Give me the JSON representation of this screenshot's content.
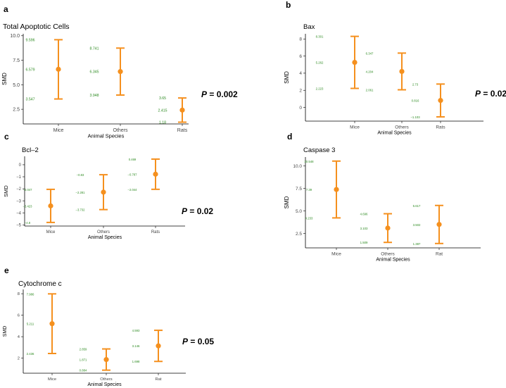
{
  "colors": {
    "point": "#F5901E",
    "label": "#2E8B22",
    "axis": "#000000",
    "tick": "#444444"
  },
  "panels": [
    {
      "letter": "a",
      "title": "Total Apoptotic Cells",
      "pvalue_prefix": "P",
      "pvalue_rest": " = 0.002"
    },
    {
      "letter": "b",
      "title": "Bax",
      "pvalue_prefix": "P",
      "pvalue_rest": " = 0.02"
    },
    {
      "letter": "c",
      "title": "Bcl–2",
      "pvalue_prefix": "P",
      "pvalue_rest": " = 0.02"
    },
    {
      "letter": "d",
      "title": "Caspase 3",
      "pvalue_prefix": "P",
      "pvalue_rest": " = 0.02"
    },
    {
      "letter": "e",
      "title": "Cytochrome c",
      "pvalue_prefix": "P",
      "pvalue_rest": " = 0.05"
    }
  ],
  "chart_data": [
    {
      "type": "errorbar",
      "title": "Total Apoptotic Cells",
      "xlabel": "Animal Species",
      "ylabel": "SMD",
      "ylim": [
        1.0,
        10.2
      ],
      "yticks": [
        "2.5",
        "5.0",
        "7.5",
        "10.0"
      ],
      "ytick_values": [
        2.5,
        5.0,
        7.5,
        10.0
      ],
      "categories": [
        "Mice",
        "Others",
        "Rats"
      ],
      "points": [
        {
          "mean": 6.579,
          "lower": 3.547,
          "upper": 9.596,
          "mean_label": "6.579",
          "lower_label": "3.547",
          "upper_label": "9.596"
        },
        {
          "mean": 6.345,
          "lower": 3.948,
          "upper": 8.741,
          "mean_label": "6.345",
          "lower_label": "3.948",
          "upper_label": "8.741"
        },
        {
          "mean": 2.415,
          "lower": 1.18,
          "upper": 3.65,
          "mean_label": "2.415",
          "lower_label": "1.18",
          "upper_label": "3.65"
        }
      ]
    },
    {
      "type": "errorbar",
      "title": "Bax",
      "xlabel": "Animal Species",
      "ylabel": "SMD",
      "ylim": [
        -1.6,
        8.6
      ],
      "yticks": [
        "0",
        "2",
        "4",
        "6",
        "8"
      ],
      "ytick_values": [
        0,
        2,
        4,
        6,
        8
      ],
      "categories": [
        "Mice",
        "Others",
        "Rats"
      ],
      "points": [
        {
          "mean": 5.262,
          "lower": 2.223,
          "upper": 8.301,
          "mean_label": "5.262",
          "lower_label": "2.223",
          "upper_label": "8.301"
        },
        {
          "mean": 4.204,
          "lower": 2.061,
          "upper": 6.347,
          "mean_label": "4.204",
          "lower_label": "2.061",
          "upper_label": "6.347"
        },
        {
          "mean": 0.816,
          "lower": -1.103,
          "upper": 2.73,
          "mean_label": "0.816",
          "lower_label": "−1.103",
          "upper_label": "2.73"
        }
      ]
    },
    {
      "type": "errorbar",
      "title": "Bcl–2",
      "xlabel": "Animal Species",
      "ylabel": "SMD",
      "ylim": [
        -5.1,
        0.7
      ],
      "yticks": [
        "−5",
        "−4",
        "−3",
        "−2",
        "−1",
        "0"
      ],
      "ytick_values": [
        -5,
        -4,
        -3,
        -2,
        -1,
        0
      ],
      "categories": [
        "Mice",
        "Others",
        "Rats"
      ],
      "points": [
        {
          "mean": -3.423,
          "lower": -4.8,
          "upper": -2.047,
          "mean_label": "−3.423",
          "lower_label": "−4.8",
          "upper_label": "−2.047"
        },
        {
          "mean": -2.281,
          "lower": -3.732,
          "upper": -0.83,
          "mean_label": "−2.281",
          "lower_label": "−3.732",
          "upper_label": "−0.83"
        },
        {
          "mean": -0.787,
          "lower": -2.044,
          "upper": 0.469,
          "mean_label": "−0.787",
          "lower_label": "−2.044",
          "upper_label": "0.469"
        }
      ]
    },
    {
      "type": "errorbar",
      "title": "Caspase 3",
      "xlabel": "Animal Species",
      "ylabel": "SMD",
      "ylim": [
        0.9,
        11.0
      ],
      "yticks": [
        "2.5",
        "5.0",
        "7.5",
        "10.0"
      ],
      "ytick_values": [
        2.5,
        5.0,
        7.5,
        10.0
      ],
      "categories": [
        "Mice",
        "Others",
        "Rat"
      ],
      "points": [
        {
          "mean": 7.39,
          "lower": 4.233,
          "upper": 10.548,
          "mean_label": "7.39",
          "lower_label": "4.233",
          "upper_label": "10.548"
        },
        {
          "mean": 3.103,
          "lower": 1.509,
          "upper": 4.696,
          "mean_label": "3.103",
          "lower_label": "1.509",
          "upper_label": "4.696"
        },
        {
          "mean": 3.502,
          "lower": 1.387,
          "upper": 5.617,
          "mean_label": "3.502",
          "lower_label": "1.387",
          "upper_label": "5.617"
        }
      ]
    },
    {
      "type": "errorbar",
      "title": "Cytochrome c",
      "xlabel": "Animal Species",
      "ylabel": "SMD",
      "ylim": [
        0.6,
        8.4
      ],
      "yticks": [
        "2",
        "4",
        "6",
        "8"
      ],
      "ytick_values": [
        2,
        4,
        6,
        8
      ],
      "categories": [
        "Mice",
        "Others",
        "Rat"
      ],
      "points": [
        {
          "mean": 5.211,
          "lower": 2.436,
          "upper": 7.986,
          "mean_label": "5.211",
          "lower_label": "2.436",
          "upper_label": "7.986"
        },
        {
          "mean": 1.871,
          "lower": 0.884,
          "upper": 2.859,
          "mean_label": "1.871",
          "lower_label": "0.884",
          "upper_label": "2.859"
        },
        {
          "mean": 3.146,
          "lower": 1.698,
          "upper": 4.593,
          "mean_label": "3.146",
          "lower_label": "1.698",
          "upper_label": "4.593"
        }
      ]
    }
  ]
}
